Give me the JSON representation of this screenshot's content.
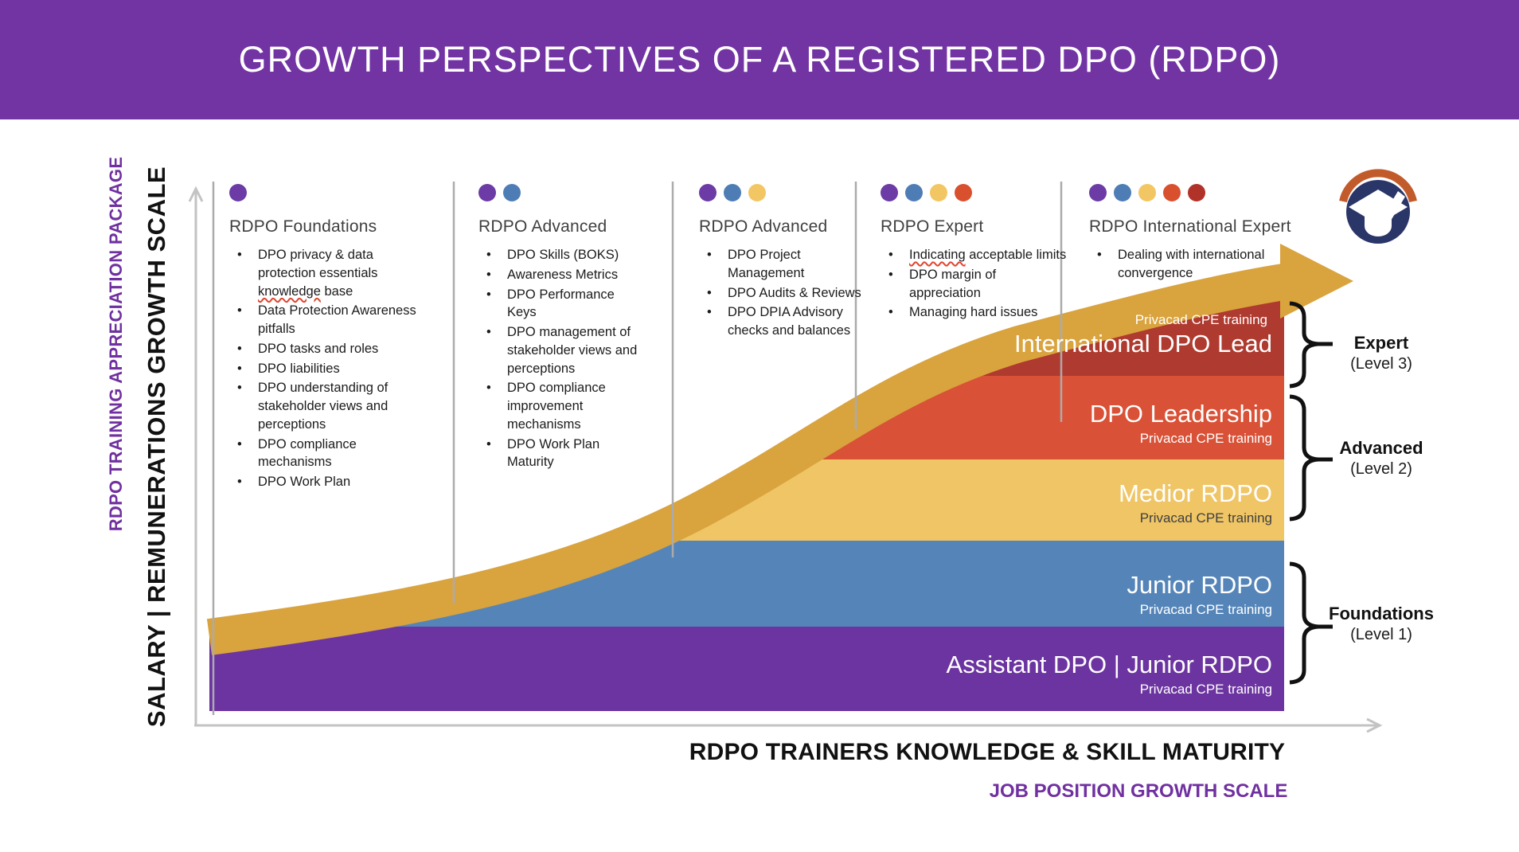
{
  "banner": {
    "title": "GROWTH PERSPECTIVES OF A REGISTERED DPO (RDPO)"
  },
  "y_axis": {
    "primary": "SALARY | REMUNERATIONS GROWTH SCALE",
    "secondary": "RDPO TRAINING APPRECIATION PACKAGE"
  },
  "x_axis": {
    "primary": "RDPO TRAINERS KNOWLEDGE & SKILL MATURITY",
    "secondary": "JOB POSITION GROWTH SCALE"
  },
  "columns": [
    {
      "title": "RDPO Foundations",
      "dots": 1,
      "bullets": [
        "DPO privacy & data protection essentials knowledge base",
        "Data Protection Awareness pitfalls",
        "DPO tasks and roles",
        "DPO liabilities",
        "DPO understanding of stakeholder views and perceptions",
        "DPO compliance mechanisms",
        "DPO Work Plan"
      ]
    },
    {
      "title": "RDPO Advanced",
      "dots": 2,
      "bullets": [
        "DPO Skills (BOKS)",
        "Awareness Metrics",
        "DPO Performance Keys",
        "DPO management of stakeholder views and perceptions",
        "DPO compliance improvement mechanisms",
        "DPO Work Plan Maturity"
      ]
    },
    {
      "title": "RDPO Advanced",
      "dots": 3,
      "bullets": [
        "DPO Project Management",
        "DPO Audits & Reviews",
        "DPO DPIA Advisory checks and balances"
      ]
    },
    {
      "title": "RDPO Expert",
      "dots": 4,
      "bullets": [
        "Indicating acceptable limits",
        "DPO margin of appreciation",
        "Managing hard issues"
      ]
    },
    {
      "title": "RDPO International Expert",
      "dots": 5,
      "bullets": [
        "Dealing with international convergence"
      ]
    }
  ],
  "bands": [
    {
      "name": "International DPO Lead",
      "training": "Privacad CPE training",
      "color": "#AF3A2F",
      "training_color": "#FFFFFF",
      "training_position": "above"
    },
    {
      "name": "DPO Leadership",
      "training": "Privacad CPE training",
      "color": "#D95136",
      "training_color": "#FFFFFF",
      "training_position": "below"
    },
    {
      "name": "Medior RDPO",
      "training": "Privacad CPE training",
      "color": "#EFC566",
      "training_color": "#3F3F3F",
      "training_position": "below"
    },
    {
      "name": "Junior RDPO",
      "training": "Privacad CPE training",
      "color": "#5585B8",
      "training_color": "#FFFFFF",
      "training_position": "below"
    },
    {
      "name": "Assistant DPO | Junior RDPO",
      "training": "Privacad CPE training",
      "color": "#6C34A0",
      "training_color": "#FFFFFF",
      "training_position": "below"
    }
  ],
  "levels": [
    {
      "name": "Expert",
      "sub": "(Level 3)"
    },
    {
      "name": "Advanced",
      "sub": "(Level 2)"
    },
    {
      "name": "Foundations",
      "sub": "(Level 1)"
    }
  ],
  "misspelled": [
    "knowledge",
    "Indicating"
  ],
  "colors": {
    "banner": "#7233A3",
    "gold_arrow": "#D9A33E",
    "dots": [
      "#6C3BA5",
      "#4E7DB5",
      "#F2C763",
      "#D9502F",
      "#B13228"
    ],
    "divider": "#ABABAB",
    "axis": "#C3C3C3",
    "brace": "#111111",
    "heading_text": "#3F3F3F",
    "body_text": "#1B1B1B",
    "purple_label": "#7030A0",
    "logo_navy": "#2A3568",
    "logo_orange": "#C25B2B"
  }
}
